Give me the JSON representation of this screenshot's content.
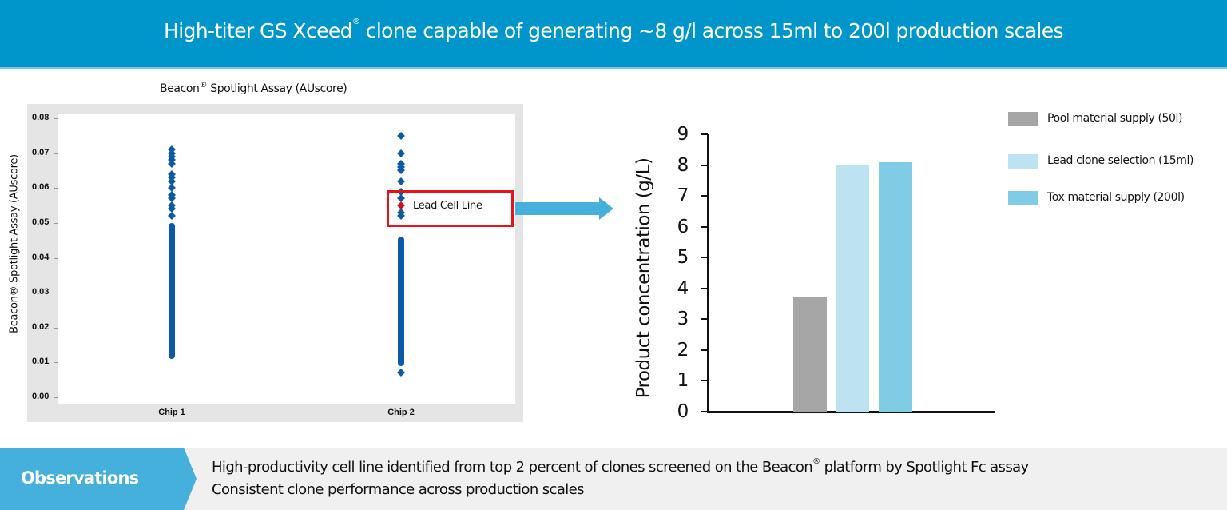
{
  "header": {
    "title_part1": "High-titer GS Xceed",
    "title_reg": "®",
    "title_part2": " clone capable of generating ~8 g/l across 15ml to 200l production scales",
    "bg_color": "#0096cc"
  },
  "scatter": {
    "title_part1": "Beacon",
    "title_reg": "®",
    "title_part2": " Spotlight Assay (AUscore)",
    "ylabel": "Beacon® Spotlight Assay (AUscore)",
    "yticks": [
      "0.08",
      "0.07",
      "0.06",
      "0.05",
      "0.04",
      "0.03",
      "0.02",
      "0.01",
      "0.00"
    ],
    "categories": [
      "Chip 1",
      "Chip 2"
    ],
    "annotation": "Lead Cell Line"
  },
  "bar": {
    "ylabel": "Product concentration (g/L)",
    "yticks": [
      "9",
      "8",
      "7",
      "6",
      "5",
      "4",
      "3",
      "2",
      "1",
      "0"
    ]
  },
  "legend": [
    {
      "label": "Pool material supply (50l)",
      "color": "#a6a6a6"
    },
    {
      "label": "Lead clone selection  (15ml)",
      "color": "#bde3f2"
    },
    {
      "label": "Tox material supply  (200l)",
      "color": "#80cbe6"
    }
  ],
  "observations": {
    "label": "Observations",
    "line1_part1": "High-productivity cell line identified from top 2 percent of clones screened on the Beacon",
    "line1_reg": "®",
    "line1_part2": " platform by Spotlight Fc assay",
    "line2": "Consistent clone performance across production scales"
  },
  "chart_data": [
    {
      "type": "scatter",
      "title": "Beacon® Spotlight Assay (AUscore)",
      "xlabel": "",
      "ylabel": "Beacon® Spotlight Assay (AUscore)",
      "categories": [
        "Chip 1",
        "Chip 2"
      ],
      "ylim": [
        0.0,
        0.08
      ],
      "yticks": [
        0.0,
        0.01,
        0.02,
        0.03,
        0.04,
        0.05,
        0.06,
        0.07,
        0.08
      ],
      "grid": false,
      "series": [
        {
          "name": "Chip 1",
          "min": 0.011,
          "max": 0.071,
          "dense_range": [
            0.011,
            0.05
          ],
          "notable_points": [
            0.071,
            0.07,
            0.069,
            0.068,
            0.067,
            0.064,
            0.063,
            0.062,
            0.06,
            0.058,
            0.057,
            0.055,
            0.054,
            0.052
          ]
        },
        {
          "name": "Chip 2",
          "min": 0.007,
          "max": 0.075,
          "dense_range": [
            0.009,
            0.046
          ],
          "notable_points": [
            0.075,
            0.07,
            0.067,
            0.066,
            0.065,
            0.062,
            0.059,
            0.057,
            0.053,
            0.052,
            0.007
          ]
        }
      ],
      "annotations": [
        {
          "text": "Lead Cell Line",
          "category": "Chip 2",
          "value": 0.055,
          "color": "#d0101a"
        }
      ]
    },
    {
      "type": "bar",
      "title": "",
      "xlabel": "",
      "ylabel": "Product concentration (g/L)",
      "categories": [
        "Pool material supply (50l)",
        "Lead clone selection (15ml)",
        "Tox material supply (200l)"
      ],
      "values": [
        3.7,
        8.0,
        8.1
      ],
      "colors": [
        "#a6a6a6",
        "#bde3f2",
        "#80cbe6"
      ],
      "ylim": [
        0,
        9
      ],
      "yticks": [
        0,
        1,
        2,
        3,
        4,
        5,
        6,
        7,
        8,
        9
      ],
      "grid": false,
      "legend_position": "right"
    }
  ]
}
